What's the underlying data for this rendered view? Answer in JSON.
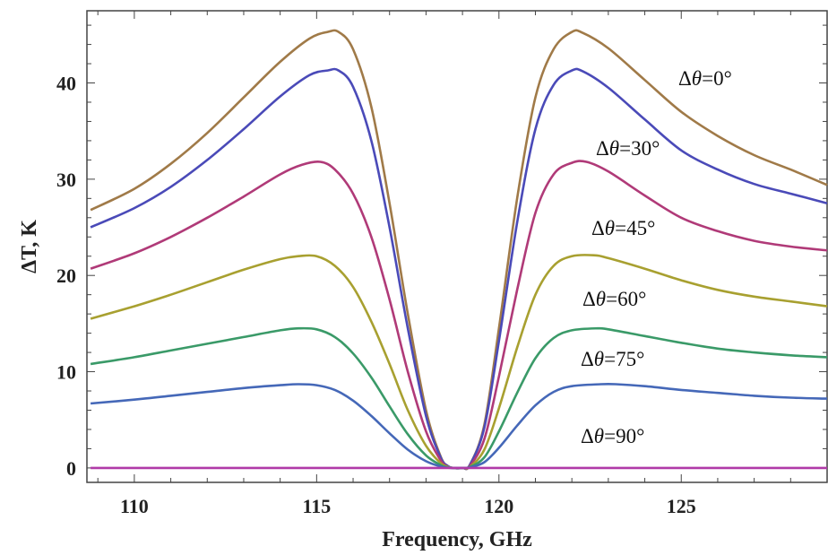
{
  "chart_data": {
    "type": "line",
    "title": "",
    "xlabel": "Frequency, GHz",
    "ylabel": "ΔT, K",
    "xlim": [
      108.7,
      129
    ],
    "ylim": [
      -1.5,
      47.5
    ],
    "x_ticks": [
      110,
      115,
      120,
      125
    ],
    "y_ticks": [
      0,
      10,
      20,
      30,
      40
    ],
    "grid": false,
    "curve_labels": [
      {
        "prefix": "Δ",
        "symbol": "θ",
        "suffix": "=0°"
      },
      {
        "prefix": "Δ",
        "symbol": "θ",
        "suffix": "=30°"
      },
      {
        "prefix": "Δ",
        "symbol": "θ",
        "suffix": "=45°"
      },
      {
        "prefix": "Δ",
        "symbol": "θ",
        "suffix": "=60°"
      },
      {
        "prefix": "Δ",
        "symbol": "θ",
        "suffix": "=75°"
      },
      {
        "prefix": "Δ",
        "symbol": "θ",
        "suffix": "=90°"
      }
    ],
    "series": [
      {
        "color": "#a07a48",
        "x": [
          108.8,
          110,
          111,
          112,
          113,
          114,
          114.8,
          115.3,
          115.6,
          116,
          116.5,
          117,
          117.5,
          118,
          118.4,
          118.6,
          118.75,
          119.0,
          119.2,
          119.6,
          120,
          120.5,
          121,
          121.5,
          122.0,
          122.3,
          123,
          124,
          125,
          126,
          127,
          128,
          129
        ],
        "y": [
          26.8,
          29.0,
          31.6,
          34.8,
          38.5,
          42.2,
          44.6,
          45.3,
          45.3,
          43.5,
          37.5,
          27.5,
          16.0,
          6.0,
          1.2,
          0.2,
          0,
          0,
          0.3,
          4.5,
          14.5,
          28.0,
          38.5,
          43.5,
          45.3,
          45.2,
          43.6,
          40.3,
          37.0,
          34.5,
          32.5,
          31.0,
          29.4
        ]
      },
      {
        "color": "#4a4ab8",
        "x": [
          108.8,
          110,
          111,
          112,
          113,
          114,
          114.8,
          115.3,
          115.6,
          116,
          116.5,
          117,
          117.5,
          118,
          118.4,
          118.6,
          118.75,
          119.0,
          119.2,
          119.6,
          120,
          120.5,
          121,
          121.5,
          122.0,
          122.3,
          123,
          124,
          125,
          126,
          127,
          128,
          129
        ],
        "y": [
          25.0,
          27.0,
          29.2,
          32.0,
          35.2,
          38.6,
          40.8,
          41.3,
          41.3,
          39.6,
          34.0,
          25.0,
          14.5,
          5.4,
          1.1,
          0.2,
          0,
          0,
          0.3,
          4.2,
          13.2,
          25.5,
          35.2,
          39.8,
          41.3,
          41.2,
          39.5,
          36.2,
          33.0,
          31.0,
          29.5,
          28.5,
          27.5
        ]
      },
      {
        "color": "#b03a78",
        "x": [
          108.8,
          110,
          111,
          112,
          113,
          114,
          114.6,
          115.1,
          115.5,
          116,
          116.5,
          117,
          117.5,
          118,
          118.4,
          118.6,
          118.75,
          119.0,
          119.2,
          119.6,
          120,
          120.5,
          121,
          121.5,
          122.0,
          122.4,
          123,
          124,
          125,
          126,
          127,
          128,
          129
        ],
        "y": [
          20.7,
          22.3,
          24.0,
          26.0,
          28.2,
          30.5,
          31.5,
          31.8,
          31.0,
          28.5,
          24.0,
          17.5,
          10.0,
          3.8,
          0.8,
          0.1,
          0,
          0,
          0.2,
          3.0,
          9.5,
          18.5,
          26.5,
          30.5,
          31.7,
          31.8,
          30.8,
          28.3,
          26.0,
          24.6,
          23.6,
          23.0,
          22.6
        ]
      },
      {
        "color": "#a8a030",
        "x": [
          108.8,
          110,
          111,
          112,
          113,
          114,
          114.5,
          115.0,
          115.5,
          116,
          116.5,
          117,
          117.5,
          118,
          118.4,
          118.6,
          118.75,
          119.0,
          119.2,
          119.6,
          120,
          120.5,
          121,
          121.5,
          122.0,
          122.6,
          123,
          124,
          125,
          126,
          127,
          128,
          129
        ],
        "y": [
          15.5,
          16.8,
          18.0,
          19.3,
          20.6,
          21.7,
          22.0,
          22.0,
          21.0,
          18.8,
          15.2,
          10.8,
          6.0,
          2.3,
          0.5,
          0.1,
          0,
          0,
          0.1,
          1.9,
          6.2,
          12.5,
          18.0,
          21.0,
          22.0,
          22.1,
          21.8,
          20.7,
          19.5,
          18.5,
          17.8,
          17.3,
          16.8
        ]
      },
      {
        "color": "#3a9a68",
        "x": [
          108.8,
          110,
          111,
          112,
          113,
          114,
          114.5,
          115.0,
          115.5,
          116,
          116.5,
          117,
          117.5,
          118,
          118.4,
          118.6,
          118.75,
          119.0,
          119.2,
          119.6,
          120,
          120.5,
          121,
          121.5,
          122.0,
          122.7,
          123,
          124,
          125,
          126,
          127,
          128,
          129
        ],
        "y": [
          10.8,
          11.5,
          12.2,
          12.9,
          13.6,
          14.3,
          14.5,
          14.4,
          13.6,
          11.9,
          9.4,
          6.4,
          3.5,
          1.3,
          0.3,
          0.05,
          0,
          0,
          0.1,
          1.1,
          3.8,
          7.8,
          11.4,
          13.5,
          14.3,
          14.5,
          14.4,
          13.7,
          13.0,
          12.4,
          12.0,
          11.7,
          11.5
        ]
      },
      {
        "color": "#4568b8",
        "x": [
          108.8,
          110,
          111,
          112,
          113,
          114,
          114.5,
          115.0,
          115.5,
          116,
          116.5,
          117,
          117.5,
          118,
          118.4,
          118.6,
          118.75,
          119.0,
          119.2,
          119.6,
          120,
          120.5,
          121,
          121.5,
          122.0,
          122.8,
          123.2,
          124,
          125,
          126,
          127,
          128,
          129
        ],
        "y": [
          6.7,
          7.1,
          7.5,
          7.9,
          8.3,
          8.6,
          8.7,
          8.6,
          8.1,
          7.0,
          5.4,
          3.6,
          1.9,
          0.7,
          0.15,
          0.02,
          0,
          0,
          0.05,
          0.6,
          2.1,
          4.4,
          6.5,
          7.9,
          8.5,
          8.7,
          8.7,
          8.5,
          8.1,
          7.8,
          7.5,
          7.3,
          7.2
        ]
      },
      {
        "color": "#b03aa8",
        "x": [
          108.8,
          129
        ],
        "y": [
          0,
          0
        ]
      }
    ]
  }
}
